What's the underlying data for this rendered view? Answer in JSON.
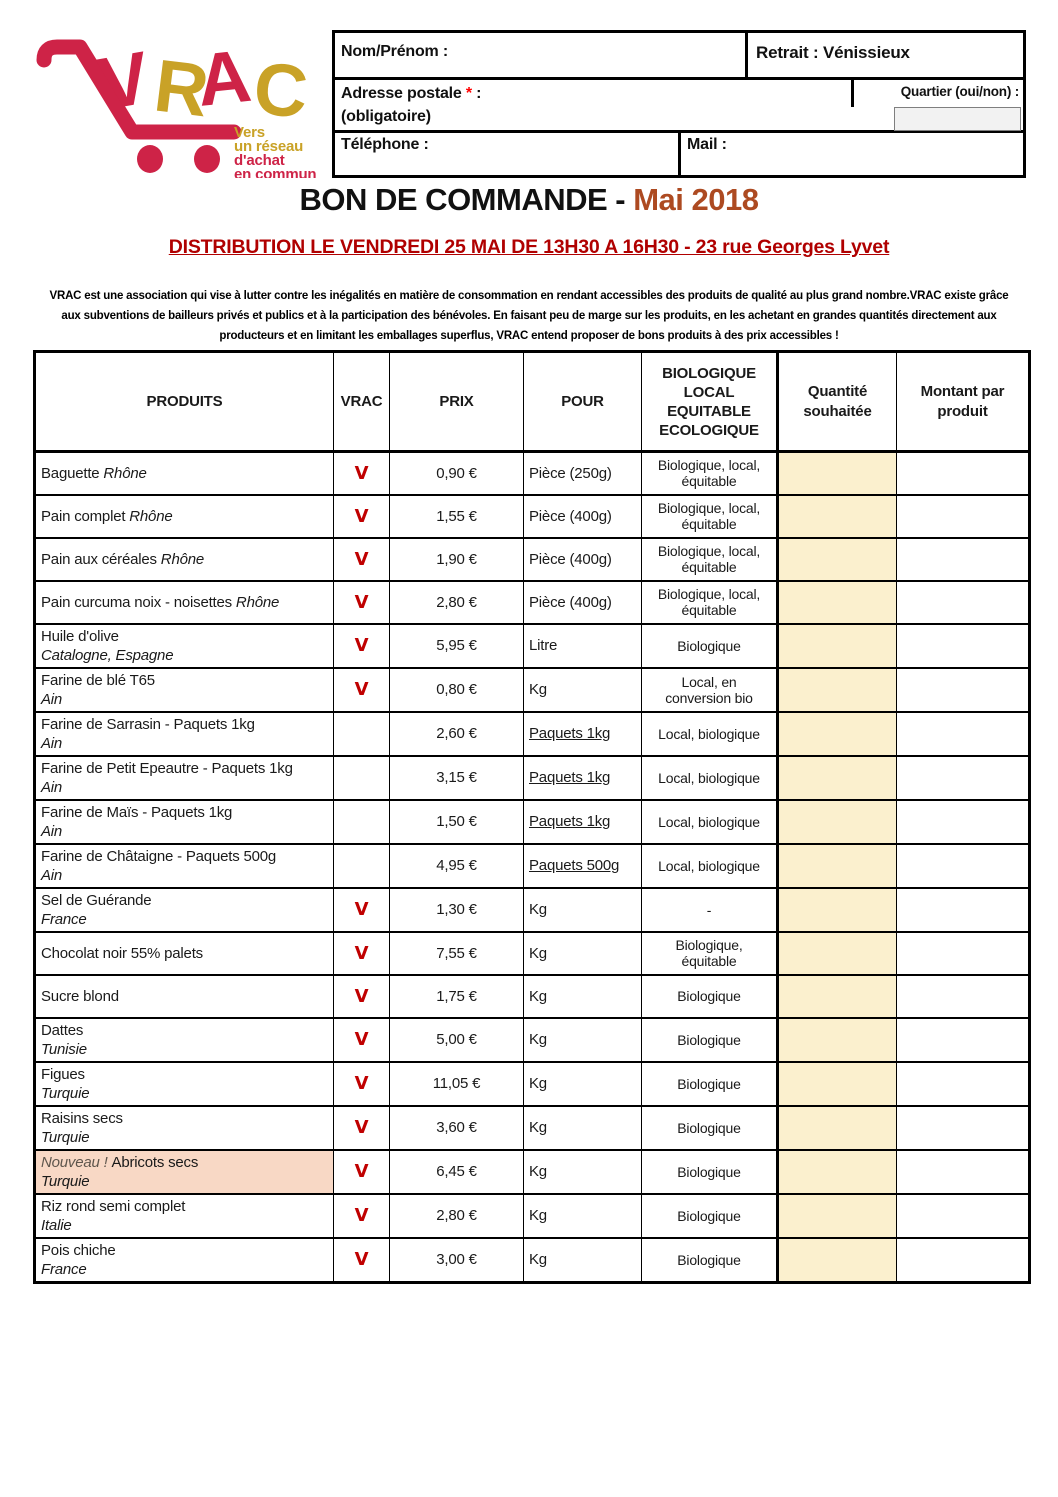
{
  "logo": {
    "letters": [
      "V",
      "R",
      "A",
      "C"
    ],
    "tagline": [
      "Vers",
      "un réseau",
      "d'achat",
      "en commun"
    ]
  },
  "form": {
    "nom_label": "Nom/Prénom :",
    "retrait_label": "Retrait : Vénissieux",
    "adresse_label": "Adresse postale",
    "adresse_required_mark": "*",
    "adresse_colon": " :",
    "adresse_note": "(obligatoire)",
    "quartier_label": "Quartier (oui/non) :",
    "telephone_label": "Téléphone :",
    "mail_label": "Mail :"
  },
  "title": {
    "main": "BON DE COMMANDE - ",
    "accent": "Mai 2018"
  },
  "subtitle": "DISTRIBUTION LE VENDREDI 25 MAI DE 13H30 A 16H30 - 23 rue Georges Lyvet",
  "description_lines": [
    "VRAC est une association qui vise à lutter contre les inégalités en matière de consommation en rendant accessibles des produits de qualité au plus grand nombre.VRAC existe grâce",
    "aux subventions de bailleurs privés et publics et à la participation des bénévoles. En faisant peu de marge sur les produits, en les achetant en grandes quantités directement aux",
    "producteurs et en limitant les emballages superflus, VRAC entend proposer de bons produits à des prix accessibles !"
  ],
  "table": {
    "headers": {
      "produits": "PRODUITS",
      "vrac": "VRAC",
      "prix": "PRIX",
      "pour": "POUR",
      "bio_lines": [
        "BIOLOGIQUE",
        "LOCAL",
        "EQUITABLE",
        "ECOLOGIQUE"
      ],
      "quantite": "Quantité souhaitée",
      "montant": "Montant par produit"
    },
    "vrac_mark": "V",
    "rows": [
      {
        "name": "Baguette",
        "suffix": "Rhône",
        "origin": "",
        "vrac": true,
        "prix": "0,90 €",
        "pour": "Pièce (250g)",
        "pour_underline": false,
        "bio": "Biologique, local, équitable",
        "highlight": false
      },
      {
        "name": "Pain complet",
        "suffix": "Rhône",
        "origin": "",
        "vrac": true,
        "prix": "1,55 €",
        "pour": "Pièce (400g)",
        "pour_underline": false,
        "bio": "Biologique, local, équitable",
        "highlight": false
      },
      {
        "name": "Pain aux céréales",
        "suffix": "Rhône",
        "origin": "",
        "vrac": true,
        "prix": "1,90 €",
        "pour": "Pièce (400g)",
        "pour_underline": false,
        "bio": "Biologique, local, équitable",
        "highlight": false
      },
      {
        "name": "Pain curcuma noix - noisettes",
        "suffix": "Rhône",
        "origin": "",
        "vrac": true,
        "prix": "2,80 €",
        "pour": "Pièce (400g)",
        "pour_underline": false,
        "bio": "Biologique, local, équitable",
        "highlight": false
      },
      {
        "name": "Huile d'olive",
        "suffix": "",
        "origin": "Catalogne, Espagne",
        "vrac": true,
        "prix": "5,95 €",
        "pour": "Litre",
        "pour_underline": false,
        "bio": "Biologique",
        "highlight": false
      },
      {
        "name": "Farine de blé T65",
        "suffix": "",
        "origin": "Ain",
        "vrac": true,
        "prix": "0,80 €",
        "pour": "Kg",
        "pour_underline": false,
        "bio": "Local, en conversion bio",
        "highlight": false
      },
      {
        "name": "Farine de Sarrasin - Paquets 1kg",
        "suffix": "",
        "origin": "Ain",
        "vrac": false,
        "prix": "2,60 €",
        "pour": "Paquets 1kg",
        "pour_underline": true,
        "bio": "Local, biologique",
        "highlight": false
      },
      {
        "name": "Farine de Petit Epeautre - Paquets 1kg",
        "suffix": "",
        "origin": "Ain",
        "vrac": false,
        "prix": "3,15 €",
        "pour": "Paquets 1kg",
        "pour_underline": true,
        "bio": "Local, biologique",
        "highlight": false
      },
      {
        "name": "Farine de Maïs - Paquets 1kg",
        "suffix": "",
        "origin": "Ain",
        "vrac": false,
        "prix": "1,50 €",
        "pour": "Paquets 1kg",
        "pour_underline": true,
        "bio": "Local, biologique",
        "highlight": false
      },
      {
        "name": "Farine de Châtaigne - Paquets 500g",
        "suffix": "",
        "origin": "Ain",
        "vrac": false,
        "prix": "4,95 €",
        "pour": "Paquets 500g",
        "pour_underline": true,
        "bio": "Local, biologique",
        "highlight": false
      },
      {
        "name": "Sel de Guérande",
        "suffix": "",
        "origin": "France",
        "vrac": true,
        "prix": "1,30 €",
        "pour": "Kg",
        "pour_underline": false,
        "bio": "-",
        "highlight": false
      },
      {
        "name": "Chocolat noir 55% palets",
        "suffix": "",
        "origin": "",
        "vrac": true,
        "prix": "7,55 €",
        "pour": "Kg",
        "pour_underline": false,
        "bio": "Biologique, équitable",
        "highlight": false
      },
      {
        "name": "Sucre blond",
        "suffix": "",
        "origin": "",
        "vrac": true,
        "prix": "1,75 €",
        "pour": "Kg",
        "pour_underline": false,
        "bio": "Biologique",
        "highlight": false
      },
      {
        "name": "Dattes",
        "suffix": "",
        "origin": "Tunisie",
        "vrac": true,
        "prix": "5,00 €",
        "pour": "Kg",
        "pour_underline": false,
        "bio": "Biologique",
        "highlight": false
      },
      {
        "name": "Figues",
        "suffix": "",
        "origin": "Turquie",
        "vrac": true,
        "prix": "11,05 €",
        "pour": "Kg",
        "pour_underline": false,
        "bio": "Biologique",
        "highlight": false
      },
      {
        "name": "Raisins secs",
        "suffix": "",
        "origin": "Turquie",
        "vrac": true,
        "prix": "3,60 €",
        "pour": "Kg",
        "pour_underline": false,
        "bio": "Biologique",
        "highlight": false
      },
      {
        "prefix": "Nouveau !",
        "name": "Abricots secs",
        "suffix": "",
        "origin": "Turquie",
        "vrac": true,
        "prix": "6,45 €",
        "pour": "Kg",
        "pour_underline": false,
        "bio": "Biologique",
        "highlight": true
      },
      {
        "name": "Riz rond semi complet",
        "suffix": "",
        "origin": "Italie",
        "vrac": true,
        "prix": "2,80 €",
        "pour": "Kg",
        "pour_underline": false,
        "bio": "Biologique",
        "highlight": false
      },
      {
        "name": "Pois chiche",
        "suffix": "",
        "origin": "France",
        "vrac": true,
        "prix": "3,00 €",
        "pour": "Kg",
        "pour_underline": false,
        "bio": "Biologique",
        "highlight": false
      }
    ]
  },
  "colors": {
    "logo_red": "#CE2347",
    "logo_gold": "#C9A227",
    "title_accent": "#AD4A21",
    "subtitle_red": "#B00000",
    "vrac_check_red": "#C00000",
    "quantity_cell_bg": "#FBF0CE",
    "new_product_bg": "#F8D8C5",
    "required_mark_red": "#FF0000",
    "quartier_input_bg": "#F2F2F2"
  }
}
